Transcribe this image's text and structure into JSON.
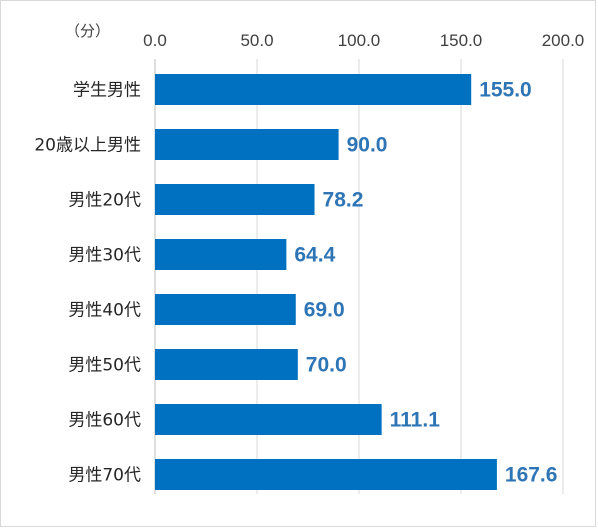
{
  "chart_data": {
    "type": "bar",
    "orientation": "horizontal",
    "unit_label": "（分）",
    "xlim": [
      0,
      200
    ],
    "ticks": [
      0,
      50,
      100,
      150,
      200
    ],
    "tick_labels": [
      "0.0",
      "50.0",
      "100.0",
      "150.0",
      "200.0"
    ],
    "axis_position": "top",
    "grid": true,
    "categories": [
      "学生男性",
      "20歳以上男性",
      "男性20代",
      "男性30代",
      "男性40代",
      "男性50代",
      "男性60代",
      "男性70代"
    ],
    "values": [
      155.0,
      90.0,
      78.2,
      64.4,
      69.0,
      70.0,
      111.1,
      167.6
    ],
    "value_labels": [
      "155.0",
      "90.0",
      "78.2",
      "64.4",
      "69.0",
      "70.0",
      "111.1",
      "167.6"
    ],
    "bar_color": "#0070c0",
    "label_color": "#2e75b6"
  }
}
